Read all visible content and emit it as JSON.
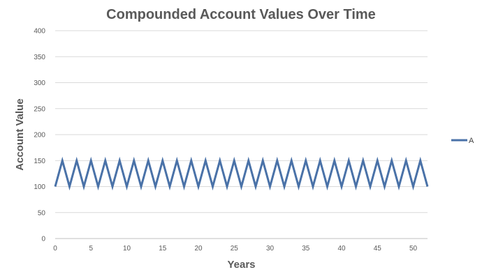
{
  "chart_data": {
    "type": "line",
    "title": "Compounded Account Values Over Time",
    "xlabel": "Years",
    "ylabel": "Account Value",
    "xlim": [
      0,
      52
    ],
    "ylim": [
      0,
      400
    ],
    "x_ticks": [
      0,
      5,
      10,
      15,
      20,
      25,
      30,
      35,
      40,
      45,
      50
    ],
    "y_ticks": [
      0,
      50,
      100,
      150,
      200,
      250,
      300,
      350,
      400
    ],
    "grid": "horizontal",
    "legend": "right",
    "colors": {
      "series_A": "#4a72a8",
      "grid": "#d9d9d9",
      "axis": "#bfbfbf"
    },
    "series": [
      {
        "name": "A",
        "x": [
          0,
          1,
          2,
          3,
          4,
          5,
          6,
          7,
          8,
          9,
          10,
          11,
          12,
          13,
          14,
          15,
          16,
          17,
          18,
          19,
          20,
          21,
          22,
          23,
          24,
          25,
          26,
          27,
          28,
          29,
          30,
          31,
          32,
          33,
          34,
          35,
          36,
          37,
          38,
          39,
          40,
          41,
          42,
          43,
          44,
          45,
          46,
          47,
          48,
          49,
          50,
          51,
          52
        ],
        "values": [
          100,
          150,
          100,
          150,
          100,
          150,
          100,
          150,
          100,
          150,
          100,
          150,
          100,
          150,
          100,
          150,
          100,
          150,
          100,
          150,
          100,
          150,
          100,
          150,
          100,
          150,
          100,
          150,
          100,
          150,
          100,
          150,
          100,
          150,
          100,
          150,
          100,
          150,
          100,
          150,
          100,
          150,
          100,
          150,
          100,
          150,
          100,
          150,
          100,
          150,
          100,
          150,
          100
        ]
      }
    ]
  }
}
